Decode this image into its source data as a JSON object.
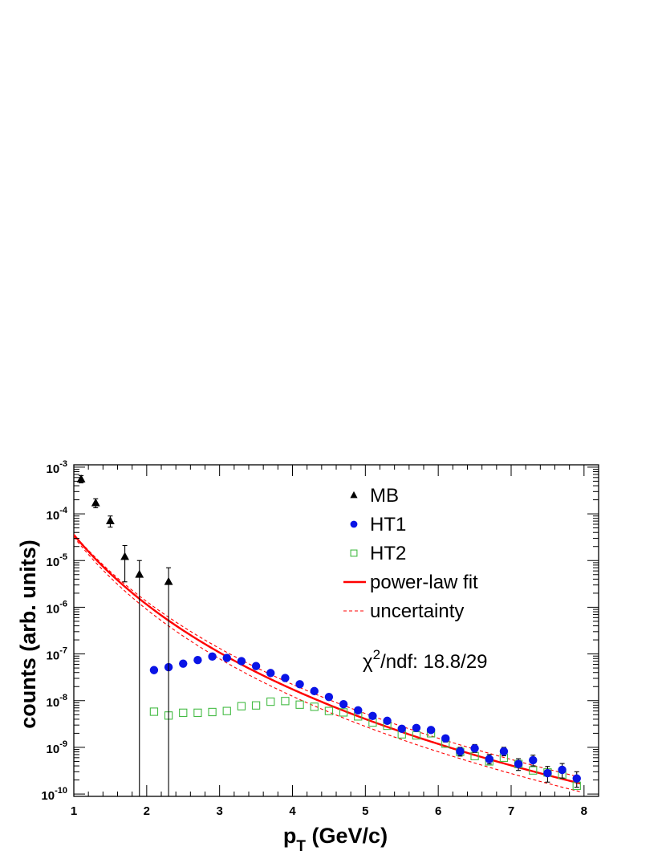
{
  "chart_data": {
    "type": "scatter",
    "xlabel": "p_T (GeV/c)",
    "xlabel_main": "p",
    "xlabel_sub": "T",
    "xlabel_rest": " (GeV/c)",
    "ylabel": "counts (arb. units)",
    "xlim": [
      1,
      8.2
    ],
    "ylim_log10": [
      -10.05,
      -2.95
    ],
    "x_ticks": [
      1,
      2,
      3,
      4,
      5,
      6,
      7,
      8
    ],
    "x_tick_labels": [
      "1",
      "2",
      "3",
      "4",
      "5",
      "6",
      "7",
      "8"
    ],
    "y_ticks_exp": [
      -10,
      -9,
      -8,
      -7,
      -6,
      -5,
      -4,
      -3
    ],
    "y_tick_base": "10",
    "y_tick_exponents": [
      "-10",
      "-9",
      "-8",
      "-7",
      "-6",
      "-5",
      "-4",
      "-3"
    ],
    "series": [
      {
        "name": "MB",
        "marker": "triangle",
        "color": "#000000",
        "points": [
          {
            "x": 1.1,
            "y": 0.00055,
            "lo": 0.00046,
            "hi": 0.00066
          },
          {
            "x": 1.3,
            "y": 0.00017,
            "lo": 0.000135,
            "hi": 0.00021
          },
          {
            "x": 1.5,
            "y": 7e-05,
            "lo": 5.2e-05,
            "hi": 9e-05
          },
          {
            "x": 1.7,
            "y": 1.2e-05,
            "lo": 3.5e-06,
            "hi": 2.1e-05
          },
          {
            "x": 1.9,
            "y": 5e-06,
            "lo": 1e-11,
            "hi": 1e-05
          },
          {
            "x": 2.3,
            "y": 3.5e-06,
            "lo": 1e-11,
            "hi": 7e-06
          }
        ]
      },
      {
        "name": "HT1",
        "marker": "circle",
        "color": "#0a14e6",
        "points": [
          {
            "x": 2.1,
            "y": 4.5e-08
          },
          {
            "x": 2.3,
            "y": 5.2e-08
          },
          {
            "x": 2.5,
            "y": 6.2e-08
          },
          {
            "x": 2.7,
            "y": 7.4e-08
          },
          {
            "x": 2.9,
            "y": 8.8e-08
          },
          {
            "x": 3.1,
            "y": 8.2e-08
          },
          {
            "x": 3.3,
            "y": 7e-08
          },
          {
            "x": 3.5,
            "y": 5.5e-08
          },
          {
            "x": 3.7,
            "y": 3.9e-08
          },
          {
            "x": 3.9,
            "y": 3.05e-08
          },
          {
            "x": 4.1,
            "y": 2.25e-08
          },
          {
            "x": 4.3,
            "y": 1.6e-08
          },
          {
            "x": 4.5,
            "y": 1.2e-08
          },
          {
            "x": 4.7,
            "y": 8.4e-09
          },
          {
            "x": 4.9,
            "y": 6.2e-09
          },
          {
            "x": 5.1,
            "y": 4.7e-09
          },
          {
            "x": 5.3,
            "y": 3.7e-09
          },
          {
            "x": 5.5,
            "y": 2.5e-09
          },
          {
            "x": 5.7,
            "y": 2.6e-09
          },
          {
            "x": 5.9,
            "y": 2.35e-09
          },
          {
            "x": 6.1,
            "y": 1.55e-09,
            "lo": 1.3e-09,
            "hi": 1.8e-09
          },
          {
            "x": 6.3,
            "y": 8.2e-10,
            "lo": 6.5e-10,
            "hi": 1e-09
          },
          {
            "x": 6.5,
            "y": 9.5e-10,
            "lo": 7.8e-10,
            "hi": 1.15e-09
          },
          {
            "x": 6.7,
            "y": 5.6e-10,
            "lo": 4.4e-10,
            "hi": 7e-10
          },
          {
            "x": 6.9,
            "y": 8.2e-10,
            "lo": 6.6e-10,
            "hi": 1e-09
          },
          {
            "x": 7.1,
            "y": 4.4e-10,
            "lo": 3.2e-10,
            "hi": 5.7e-10
          },
          {
            "x": 7.3,
            "y": 5.3e-10,
            "lo": 4e-10,
            "hi": 6.8e-10
          },
          {
            "x": 7.5,
            "y": 2.8e-10,
            "lo": 1.8e-10,
            "hi": 3.9e-10
          },
          {
            "x": 7.7,
            "y": 3.3e-10,
            "lo": 2.2e-10,
            "hi": 4.5e-10
          },
          {
            "x": 7.9,
            "y": 2.15e-10,
            "lo": 1.4e-10,
            "hi": 3e-10
          }
        ]
      },
      {
        "name": "HT2",
        "marker": "open-square",
        "color": "#44bb44",
        "points": [
          {
            "x": 2.1,
            "y": 5.8e-09
          },
          {
            "x": 2.3,
            "y": 4.8e-09
          },
          {
            "x": 2.5,
            "y": 5.5e-09
          },
          {
            "x": 2.7,
            "y": 5.5e-09
          },
          {
            "x": 2.9,
            "y": 5.7e-09
          },
          {
            "x": 3.1,
            "y": 6e-09
          },
          {
            "x": 3.3,
            "y": 7.6e-09
          },
          {
            "x": 3.5,
            "y": 7.9e-09
          },
          {
            "x": 3.7,
            "y": 9.5e-09
          },
          {
            "x": 3.9,
            "y": 9.8e-09
          },
          {
            "x": 4.1,
            "y": 8.2e-09
          },
          {
            "x": 4.3,
            "y": 7.4e-09
          },
          {
            "x": 4.5,
            "y": 6e-09
          },
          {
            "x": 4.7,
            "y": 5.6e-09
          },
          {
            "x": 4.9,
            "y": 4.6e-09
          },
          {
            "x": 5.1,
            "y": 3.4e-09
          },
          {
            "x": 5.3,
            "y": 2.9e-09
          },
          {
            "x": 5.5,
            "y": 1.9e-09
          },
          {
            "x": 5.7,
            "y": 1.8e-09
          },
          {
            "x": 5.9,
            "y": 2e-09
          },
          {
            "x": 6.1,
            "y": 1.2e-09
          },
          {
            "x": 6.3,
            "y": 8e-10
          },
          {
            "x": 6.5,
            "y": 6.5e-10
          },
          {
            "x": 6.7,
            "y": 5e-10
          },
          {
            "x": 6.9,
            "y": 6e-10
          },
          {
            "x": 7.1,
            "y": 4.4e-10
          },
          {
            "x": 7.3,
            "y": 3.2e-10
          },
          {
            "x": 7.5,
            "y": 2.9e-10
          },
          {
            "x": 7.7,
            "y": 2.6e-10
          },
          {
            "x": 7.9,
            "y": 1.5e-10
          }
        ]
      }
    ],
    "fit": {
      "name": "power-law fit",
      "color": "#ff0000",
      "function": "A*(1+pT/p0)^(-n)",
      "A": 0.0206,
      "p0": 0.78,
      "n": 7.71,
      "xrange": [
        1,
        7.95
      ]
    },
    "uncertainty": {
      "name": "uncertainty",
      "color": "#ff0000",
      "upper": {
        "A": 0.0138,
        "p0": 0.86,
        "n": 7.7
      },
      "lower": {
        "A": 0.0301,
        "p0": 0.7,
        "n": 7.72
      }
    },
    "legend": {
      "placement": "top-right",
      "entries": [
        "MB",
        "HT1",
        "HT2",
        "power-law fit",
        "uncertainty"
      ]
    },
    "annotation": {
      "chi": "χ",
      "sup": "2",
      "rest": "/ndf: 18.8/29"
    }
  }
}
